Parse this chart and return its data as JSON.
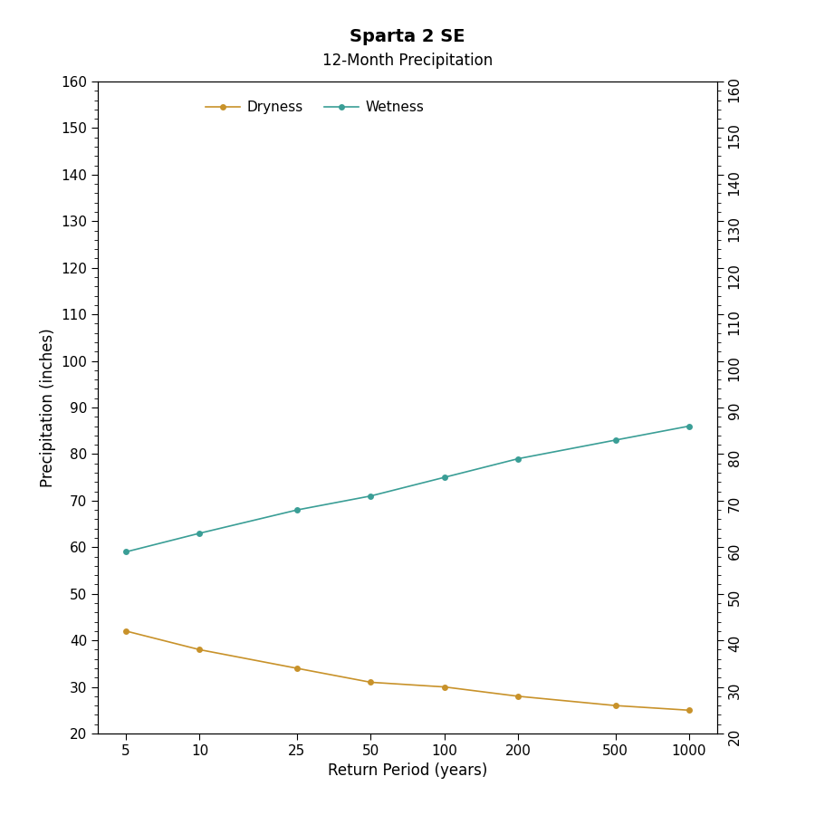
{
  "title": "Sparta 2 SE",
  "subtitle": "12-Month Precipitation",
  "xlabel": "Return Period (years)",
  "ylabel": "Precipitation (inches)",
  "x_values": [
    5,
    10,
    25,
    50,
    100,
    200,
    500,
    1000
  ],
  "wetness_y": [
    59,
    63,
    68,
    71,
    75,
    79,
    83,
    86
  ],
  "dryness_y": [
    42,
    38,
    34,
    31,
    30,
    28,
    26,
    25
  ],
  "wetness_color": "#3a9e96",
  "dryness_color": "#c8922a",
  "ylim": [
    20,
    160
  ],
  "yticks_major": [
    20,
    30,
    40,
    50,
    60,
    70,
    80,
    90,
    100,
    110,
    120,
    130,
    140,
    150,
    160
  ],
  "yticks_minor": [
    22,
    24,
    26,
    28,
    32,
    34,
    36,
    38,
    42,
    44,
    46,
    48,
    52,
    54,
    56,
    58,
    62,
    64,
    66,
    68,
    72,
    74,
    76,
    78,
    82,
    84,
    86,
    88,
    92,
    94,
    96,
    98,
    102,
    104,
    106,
    108,
    112,
    114,
    116,
    118,
    122,
    124,
    126,
    128,
    132,
    134,
    136,
    138,
    142,
    144,
    146,
    148,
    152,
    154,
    156,
    158
  ],
  "background_color": "#ffffff",
  "legend_labels": [
    "Dryness",
    "Wetness"
  ],
  "title_fontsize": 14,
  "subtitle_fontsize": 12,
  "axis_label_fontsize": 12,
  "tick_fontsize": 11
}
